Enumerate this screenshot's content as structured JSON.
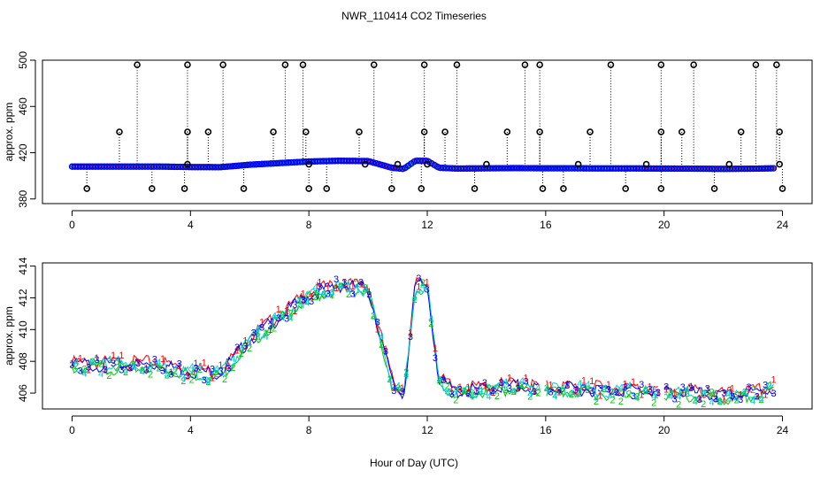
{
  "title": "NWR_110414  CO2 Timeseries",
  "xlabel": "Hour of Day (UTC)",
  "chart_data": [
    {
      "type": "scatter",
      "ylabel": "approx. ppm",
      "xlim": [
        -1,
        25
      ],
      "ylim": [
        376,
        500
      ],
      "xticks": [
        0,
        4,
        8,
        12,
        16,
        20,
        24
      ],
      "yticks": [
        380,
        420,
        460,
        500
      ],
      "baseline": [
        [
          0,
          408.0
        ],
        [
          1,
          408.0
        ],
        [
          2,
          408.0
        ],
        [
          3,
          408.0
        ],
        [
          4,
          407.6
        ],
        [
          5,
          407.5
        ],
        [
          5.5,
          408.5
        ],
        [
          6,
          409.6
        ],
        [
          7,
          411.0
        ],
        [
          8,
          412.4
        ],
        [
          9,
          413.0
        ],
        [
          10,
          412.8
        ],
        [
          10.8,
          407
        ],
        [
          11.2,
          406
        ],
        [
          11.6,
          413
        ],
        [
          12,
          413
        ],
        [
          12.4,
          407
        ],
        [
          13,
          406.3
        ],
        [
          14,
          406.5
        ],
        [
          15,
          406.7
        ],
        [
          16,
          406.5
        ],
        [
          17,
          406.5
        ],
        [
          18,
          406.4
        ],
        [
          19,
          406.4
        ],
        [
          20,
          406.3
        ],
        [
          21,
          406.2
        ],
        [
          22,
          406.0
        ],
        [
          23,
          406.2
        ],
        [
          23.7,
          406.5
        ]
      ],
      "outliers_high_496": [
        2.2,
        3.9,
        5.1,
        7.2,
        7.8,
        10.2,
        11.9,
        13.0,
        15.3,
        15.8,
        18.2,
        19.9,
        21.0,
        23.1,
        23.8
      ],
      "outliers_mid_438": [
        1.6,
        3.9,
        4.6,
        6.8,
        7.9,
        9.7,
        11.9,
        12.6,
        14.7,
        15.8,
        17.5,
        19.9,
        20.6,
        22.6,
        23.9
      ],
      "outliers_low_389": [
        0.5,
        2.7,
        3.8,
        5.8,
        8.0,
        8.6,
        10.8,
        11.8,
        13.6,
        15.9,
        16.6,
        18.7,
        19.9,
        21.7,
        24.0
      ],
      "near_410": [
        3.9,
        8.0,
        9.9,
        11.0,
        12.0,
        14.0,
        17.1,
        19.4,
        22.2,
        23.9
      ]
    },
    {
      "type": "scatter",
      "ylabel": "approx. ppm",
      "xlim": [
        -1,
        25
      ],
      "ylim": [
        405,
        414.2
      ],
      "xticks": [
        0,
        4,
        8,
        12,
        16,
        20,
        24
      ],
      "yticks": [
        406,
        408,
        410,
        412,
        414
      ],
      "series": [
        {
          "name": "1",
          "color": "#ff0000",
          "offset": 0.15
        },
        {
          "name": "2",
          "color": "#00cc00",
          "offset": -0.2
        },
        {
          "name": "3",
          "color": "#0000ff",
          "offset": 0.0
        },
        {
          "name": "4",
          "color": "#00cccc",
          "offset": -0.08
        }
      ],
      "gaps": [
        [
          15.8,
          16.0
        ],
        [
          19.8,
          20.0
        ]
      ]
    }
  ]
}
